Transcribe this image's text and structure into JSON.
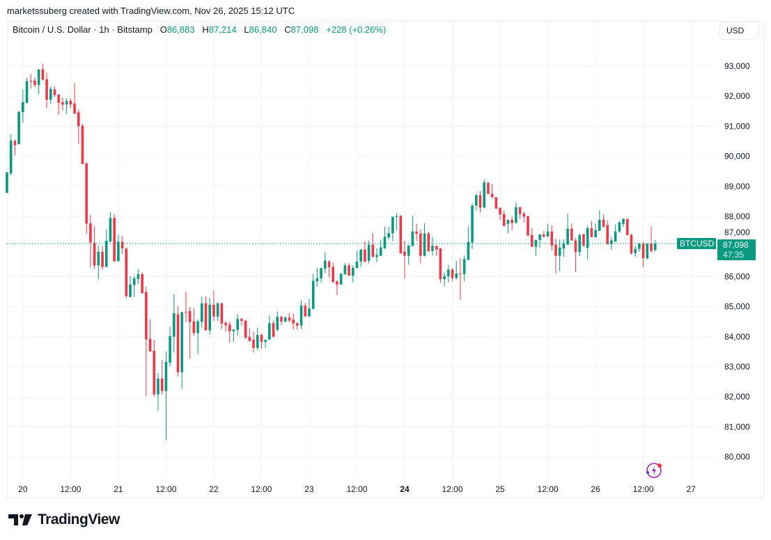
{
  "credit": "marketssuberg created with TradingView.com, Nov 26, 2025 15:12 UTC",
  "legend": {
    "symbol": "Bitcoin / U.S. Dollar · 1h · Bitstamp",
    "o_label": "O",
    "o": "86,883",
    "h_label": "H",
    "h": "87,214",
    "l_label": "L",
    "l": "86,840",
    "c_label": "C",
    "c": "87,098",
    "change": "+228 (+0.26%)"
  },
  "currency_button": "USD",
  "last_price": {
    "ticker": "BTCUSD",
    "price": "87,098",
    "countdown": "47:35",
    "value": 87098
  },
  "brand": "TradingView",
  "icons": {
    "logo": "tradingview-logo-icon",
    "lightning": "lightning-alert-icon"
  },
  "colors": {
    "up": "#089981",
    "down": "#f23645",
    "grid": "#f2f2f2",
    "text": "#131722",
    "lightning": "#9c27b0"
  },
  "chart_data": {
    "type": "candlestick",
    "interval": "1h",
    "ylim": [
      79500,
      94000
    ],
    "grid": true,
    "y_ticks": [
      "80,000",
      "81,000",
      "82,000",
      "83,000",
      "84,000",
      "85,000",
      "86,000",
      "87,000",
      "88,000",
      "89,000",
      "90,000",
      "91,000",
      "92,000",
      "93,000"
    ],
    "x_ticks": [
      "20",
      "12:00",
      "21",
      "12:00",
      "22",
      "12:00",
      "23",
      "12:00",
      "24",
      "12:00",
      "25",
      "12:00",
      "26",
      "12:00",
      "27"
    ],
    "x_tick_bold": "24",
    "ohlc": [
      [
        88780,
        89470,
        88780,
        89470
      ],
      [
        89430,
        90740,
        89370,
        90520
      ],
      [
        90510,
        90560,
        90030,
        90370
      ],
      [
        90400,
        91510,
        90400,
        91480
      ],
      [
        91470,
        92220,
        91120,
        91800
      ],
      [
        91780,
        92620,
        91760,
        92500
      ],
      [
        92510,
        92730,
        92250,
        92500
      ],
      [
        92520,
        92630,
        92300,
        92370
      ],
      [
        92370,
        92890,
        92070,
        92890
      ],
      [
        92890,
        93080,
        92520,
        92550
      ],
      [
        92560,
        92780,
        91610,
        91880
      ],
      [
        91880,
        92330,
        91740,
        92240
      ],
      [
        92220,
        92320,
        91970,
        92040
      ],
      [
        92060,
        92060,
        91380,
        91780
      ],
      [
        91800,
        91960,
        91530,
        91720
      ],
      [
        91720,
        91940,
        91410,
        91840
      ],
      [
        91850,
        91920,
        91600,
        91720
      ],
      [
        91760,
        92430,
        91420,
        91420
      ],
      [
        91460,
        91570,
        90410,
        91000
      ],
      [
        91010,
        91080,
        89740,
        89740
      ],
      [
        89760,
        89810,
        87410,
        87760
      ],
      [
        87770,
        88050,
        86300,
        87130
      ],
      [
        87120,
        87680,
        86250,
        86370
      ],
      [
        86370,
        87040,
        85920,
        86820
      ],
      [
        86820,
        87010,
        86230,
        86320
      ],
      [
        86320,
        87560,
        86320,
        87190
      ],
      [
        87170,
        88150,
        87140,
        87950
      ],
      [
        87950,
        88070,
        86480,
        86510
      ],
      [
        86510,
        87400,
        86510,
        87160
      ],
      [
        87160,
        87350,
        86760,
        86940
      ],
      [
        86930,
        86970,
        85280,
        85350
      ],
      [
        85320,
        86020,
        85320,
        85730
      ],
      [
        85720,
        86020,
        85320,
        85940
      ],
      [
        85920,
        86250,
        85750,
        86080
      ],
      [
        86080,
        86140,
        85430,
        85450
      ],
      [
        85480,
        85660,
        82030,
        83910
      ],
      [
        83920,
        84580,
        83500,
        83510
      ],
      [
        83530,
        83880,
        82010,
        82080
      ],
      [
        82080,
        82790,
        81540,
        82610
      ],
      [
        82610,
        83230,
        82080,
        82190
      ],
      [
        82190,
        83510,
        80560,
        83160
      ],
      [
        83140,
        84330,
        83020,
        84020
      ],
      [
        84000,
        85410,
        83470,
        84780
      ],
      [
        84750,
        85010,
        82670,
        82820
      ],
      [
        82820,
        84820,
        82260,
        84820
      ],
      [
        84820,
        85480,
        84490,
        84810
      ],
      [
        84850,
        84990,
        83270,
        84490
      ],
      [
        84510,
        84940,
        84030,
        84120
      ],
      [
        84120,
        84580,
        83420,
        84510
      ],
      [
        84490,
        85340,
        84300,
        85110
      ],
      [
        85110,
        85340,
        84210,
        84210
      ],
      [
        84210,
        85290,
        84070,
        85060
      ],
      [
        85060,
        85540,
        84520,
        84670
      ],
      [
        84670,
        85150,
        84530,
        85110
      ],
      [
        85110,
        85130,
        84260,
        84440
      ],
      [
        84460,
        84520,
        84170,
        84380
      ],
      [
        84400,
        84500,
        83810,
        84180
      ],
      [
        84180,
        84240,
        83830,
        84240
      ],
      [
        84230,
        84750,
        84040,
        84590
      ],
      [
        84590,
        84630,
        84360,
        84530
      ],
      [
        84540,
        84540,
        83920,
        83970
      ],
      [
        83990,
        84290,
        83830,
        83860
      ],
      [
        83900,
        84170,
        83470,
        83630
      ],
      [
        83630,
        84290,
        83550,
        84060
      ],
      [
        84060,
        84100,
        83600,
        83830
      ],
      [
        83830,
        83900,
        83620,
        83900
      ],
      [
        83900,
        84710,
        83900,
        84450
      ],
      [
        84450,
        84530,
        83970,
        84000
      ],
      [
        84230,
        84840,
        84180,
        84660
      ],
      [
        84660,
        84690,
        84380,
        84500
      ],
      [
        84500,
        84670,
        84470,
        84640
      ],
      [
        84640,
        84770,
        84480,
        84540
      ],
      [
        84570,
        84770,
        84230,
        84440
      ],
      [
        84450,
        84480,
        84230,
        84370
      ],
      [
        84370,
        85210,
        84250,
        85030
      ],
      [
        85030,
        85130,
        84640,
        84680
      ],
      [
        84680,
        85260,
        84640,
        84940
      ],
      [
        84920,
        86090,
        84920,
        85860
      ],
      [
        85840,
        86300,
        85660,
        85950
      ],
      [
        85940,
        86280,
        85800,
        86280
      ],
      [
        86260,
        86810,
        86120,
        86530
      ],
      [
        86500,
        86550,
        85980,
        86310
      ],
      [
        86320,
        86460,
        85810,
        85810
      ],
      [
        85840,
        85880,
        85380,
        85730
      ],
      [
        85730,
        86130,
        85730,
        86090
      ],
      [
        86080,
        86450,
        86050,
        86370
      ],
      [
        86370,
        86440,
        86030,
        86030
      ],
      [
        86030,
        86370,
        85810,
        86290
      ],
      [
        86280,
        86860,
        86280,
        86500
      ],
      [
        86500,
        86900,
        86320,
        86900
      ],
      [
        86900,
        87180,
        86470,
        86500
      ],
      [
        86530,
        87200,
        86440,
        87060
      ],
      [
        87060,
        87450,
        86650,
        86650
      ],
      [
        86650,
        86940,
        86480,
        86720
      ],
      [
        86690,
        87230,
        86690,
        86970
      ],
      [
        86940,
        87660,
        86920,
        87320
      ],
      [
        87300,
        87660,
        87230,
        87450
      ],
      [
        87440,
        87990,
        87180,
        87990
      ],
      [
        87990,
        88100,
        87550,
        88000
      ],
      [
        88010,
        88050,
        86750,
        86780
      ],
      [
        86830,
        87180,
        85930,
        86690
      ],
      [
        86690,
        87040,
        86390,
        87040
      ],
      [
        87020,
        88030,
        87000,
        87500
      ],
      [
        87500,
        87750,
        87180,
        87420
      ],
      [
        87430,
        87570,
        86440,
        86690
      ],
      [
        86690,
        87780,
        86670,
        87430
      ],
      [
        87430,
        87490,
        86810,
        86850
      ],
      [
        86850,
        87320,
        86690,
        87020
      ],
      [
        87020,
        87020,
        86690,
        86900
      ],
      [
        86940,
        86940,
        85790,
        85910
      ],
      [
        85910,
        86160,
        85680,
        86020
      ],
      [
        86010,
        86390,
        85810,
        86230
      ],
      [
        86230,
        86280,
        85840,
        85950
      ],
      [
        85950,
        86520,
        85900,
        86100
      ],
      [
        86100,
        86610,
        85230,
        86090
      ],
      [
        86080,
        86700,
        85850,
        86580
      ],
      [
        86550,
        87660,
        86550,
        87150
      ],
      [
        87130,
        88440,
        86920,
        88360
      ],
      [
        88360,
        88740,
        88190,
        88710
      ],
      [
        88710,
        88850,
        88130,
        88290
      ],
      [
        88290,
        89240,
        88290,
        89130
      ],
      [
        89110,
        89150,
        88740,
        88750
      ],
      [
        88750,
        89090,
        88600,
        88640
      ],
      [
        88640,
        88640,
        88260,
        88260
      ],
      [
        88290,
        88290,
        87870,
        88060
      ],
      [
        88080,
        88200,
        87680,
        87680
      ],
      [
        87750,
        87890,
        87450,
        87890
      ],
      [
        87890,
        88010,
        87540,
        87780
      ],
      [
        87780,
        88470,
        87780,
        88310
      ],
      [
        88310,
        88310,
        87920,
        88080
      ],
      [
        88100,
        88150,
        87800,
        87990
      ],
      [
        88010,
        88010,
        87360,
        87360
      ],
      [
        87380,
        87610,
        86990,
        86990
      ],
      [
        86990,
        87220,
        86690,
        87220
      ],
      [
        87220,
        87400,
        86950,
        87400
      ],
      [
        87400,
        87520,
        87300,
        87330
      ],
      [
        87330,
        87750,
        87330,
        87500
      ],
      [
        87500,
        87710,
        86850,
        87030
      ],
      [
        87060,
        87270,
        86090,
        86690
      ],
      [
        86690,
        87240,
        86180,
        86960
      ],
      [
        86930,
        87240,
        86660,
        87100
      ],
      [
        87060,
        88100,
        87060,
        87590
      ],
      [
        87590,
        87780,
        87200,
        87200
      ],
      [
        87200,
        87290,
        86150,
        86820
      ],
      [
        86820,
        87430,
        86680,
        87380
      ],
      [
        87400,
        87430,
        86990,
        87030
      ],
      [
        86960,
        87680,
        86570,
        87610
      ],
      [
        87610,
        87850,
        87310,
        87310
      ],
      [
        87310,
        87750,
        87310,
        87540
      ],
      [
        87520,
        88200,
        87520,
        87890
      ],
      [
        87890,
        88060,
        87640,
        87660
      ],
      [
        87710,
        87870,
        87060,
        87080
      ],
      [
        87080,
        87330,
        86890,
        87200
      ],
      [
        87160,
        87730,
        87160,
        87500
      ],
      [
        87500,
        87850,
        87450,
        87800
      ],
      [
        87750,
        87940,
        87660,
        87920
      ],
      [
        87920,
        87920,
        87380,
        87380
      ],
      [
        87380,
        87430,
        86730,
        86780
      ],
      [
        86780,
        87030,
        86660,
        86920
      ],
      [
        86920,
        87100,
        86820,
        87100
      ],
      [
        87100,
        87150,
        86310,
        86610
      ],
      [
        86610,
        87100,
        86570,
        87100
      ],
      [
        87100,
        87660,
        86800,
        86850
      ],
      [
        86883,
        87214,
        86840,
        87098
      ]
    ]
  }
}
